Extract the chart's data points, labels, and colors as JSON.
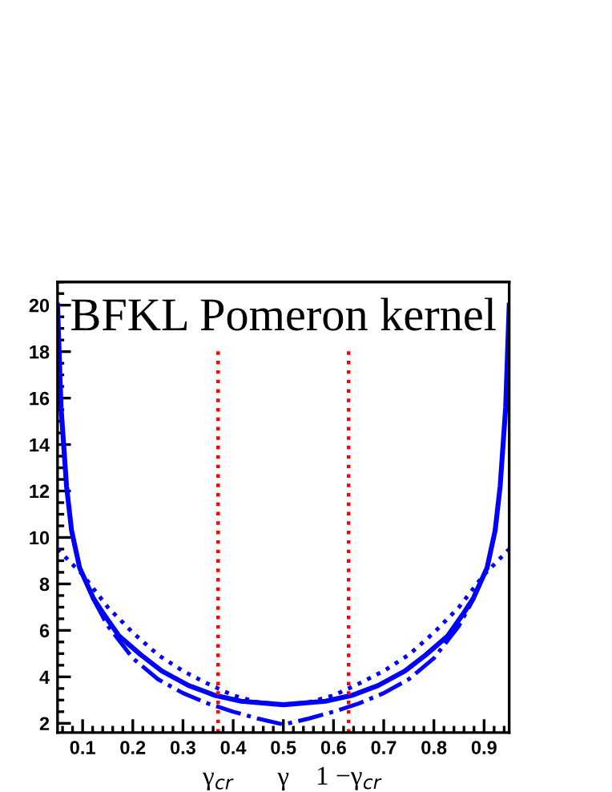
{
  "chart_data": {
    "type": "line",
    "title": "BFKL Pomeron kernel",
    "xlabel": "γ",
    "x": [
      0.05,
      0.057,
      0.068,
      0.078,
      0.094,
      0.121,
      0.142,
      0.173,
      0.216,
      0.258,
      0.311,
      0.364,
      0.416,
      0.5,
      0.584,
      0.636,
      0.689,
      0.742,
      0.784,
      0.827,
      0.858,
      0.879,
      0.906,
      0.922,
      0.932,
      0.943,
      0.95
    ],
    "series": [
      {
        "color": "#0000ff",
        "line_style": "solid",
        "values": [
          20,
          15.6,
          12.2,
          10.3,
          8.7,
          7.4,
          6.7,
          5.75,
          4.95,
          4.25,
          3.63,
          3.2,
          2.95,
          2.8,
          2.95,
          3.2,
          3.63,
          4.25,
          4.95,
          5.75,
          6.7,
          7.4,
          8.7,
          10.3,
          12.2,
          15.6,
          20
        ]
      },
      {
        "color": "#0000ff",
        "line_style": "dotted",
        "x": [
          0.05,
          0.1,
          0.15,
          0.2,
          0.25,
          0.3,
          0.35,
          0.4,
          0.45,
          0.5,
          0.55,
          0.6,
          0.65,
          0.7,
          0.75,
          0.8,
          0.85,
          0.9,
          0.95
        ],
        "values": [
          9.5,
          8.4,
          7.0,
          5.9,
          4.95,
          4.25,
          3.7,
          3.2,
          2.9,
          2.8,
          2.9,
          3.2,
          3.7,
          4.25,
          4.95,
          5.9,
          7.0,
          8.4,
          9.5
        ]
      },
      {
        "color": "#0000ff",
        "line_style": "dashdot",
        "x": [
          0.12,
          0.15,
          0.2,
          0.25,
          0.3,
          0.35,
          0.4,
          0.45,
          0.5,
          0.55,
          0.6,
          0.65,
          0.7,
          0.75,
          0.8,
          0.85,
          0.88
        ],
        "values": [
          7.4,
          6.2,
          4.8,
          3.9,
          3.3,
          2.85,
          2.5,
          2.2,
          1.95,
          2.2,
          2.5,
          2.85,
          3.3,
          3.9,
          4.8,
          6.2,
          7.4
        ]
      }
    ],
    "xlim": [
      0.05,
      0.95
    ],
    "ylim": [
      1.6,
      21
    ],
    "xticks": [
      0.1,
      0.2,
      0.3,
      0.4,
      0.5,
      0.6,
      0.7,
      0.8,
      0.9
    ],
    "yticks": [
      2,
      4,
      6,
      8,
      10,
      12,
      14,
      16,
      18,
      20
    ],
    "grid": false,
    "legend": false,
    "ref_lines": [
      {
        "axis": "x",
        "value": 0.37,
        "label": "γ$_{cr}$",
        "color": "#ff0000",
        "line_style": "dotted"
      },
      {
        "axis": "x",
        "value": 0.63,
        "label": "1 −γ$_{cr}$",
        "color": "#ff0000",
        "line_style": "dotted"
      }
    ]
  }
}
